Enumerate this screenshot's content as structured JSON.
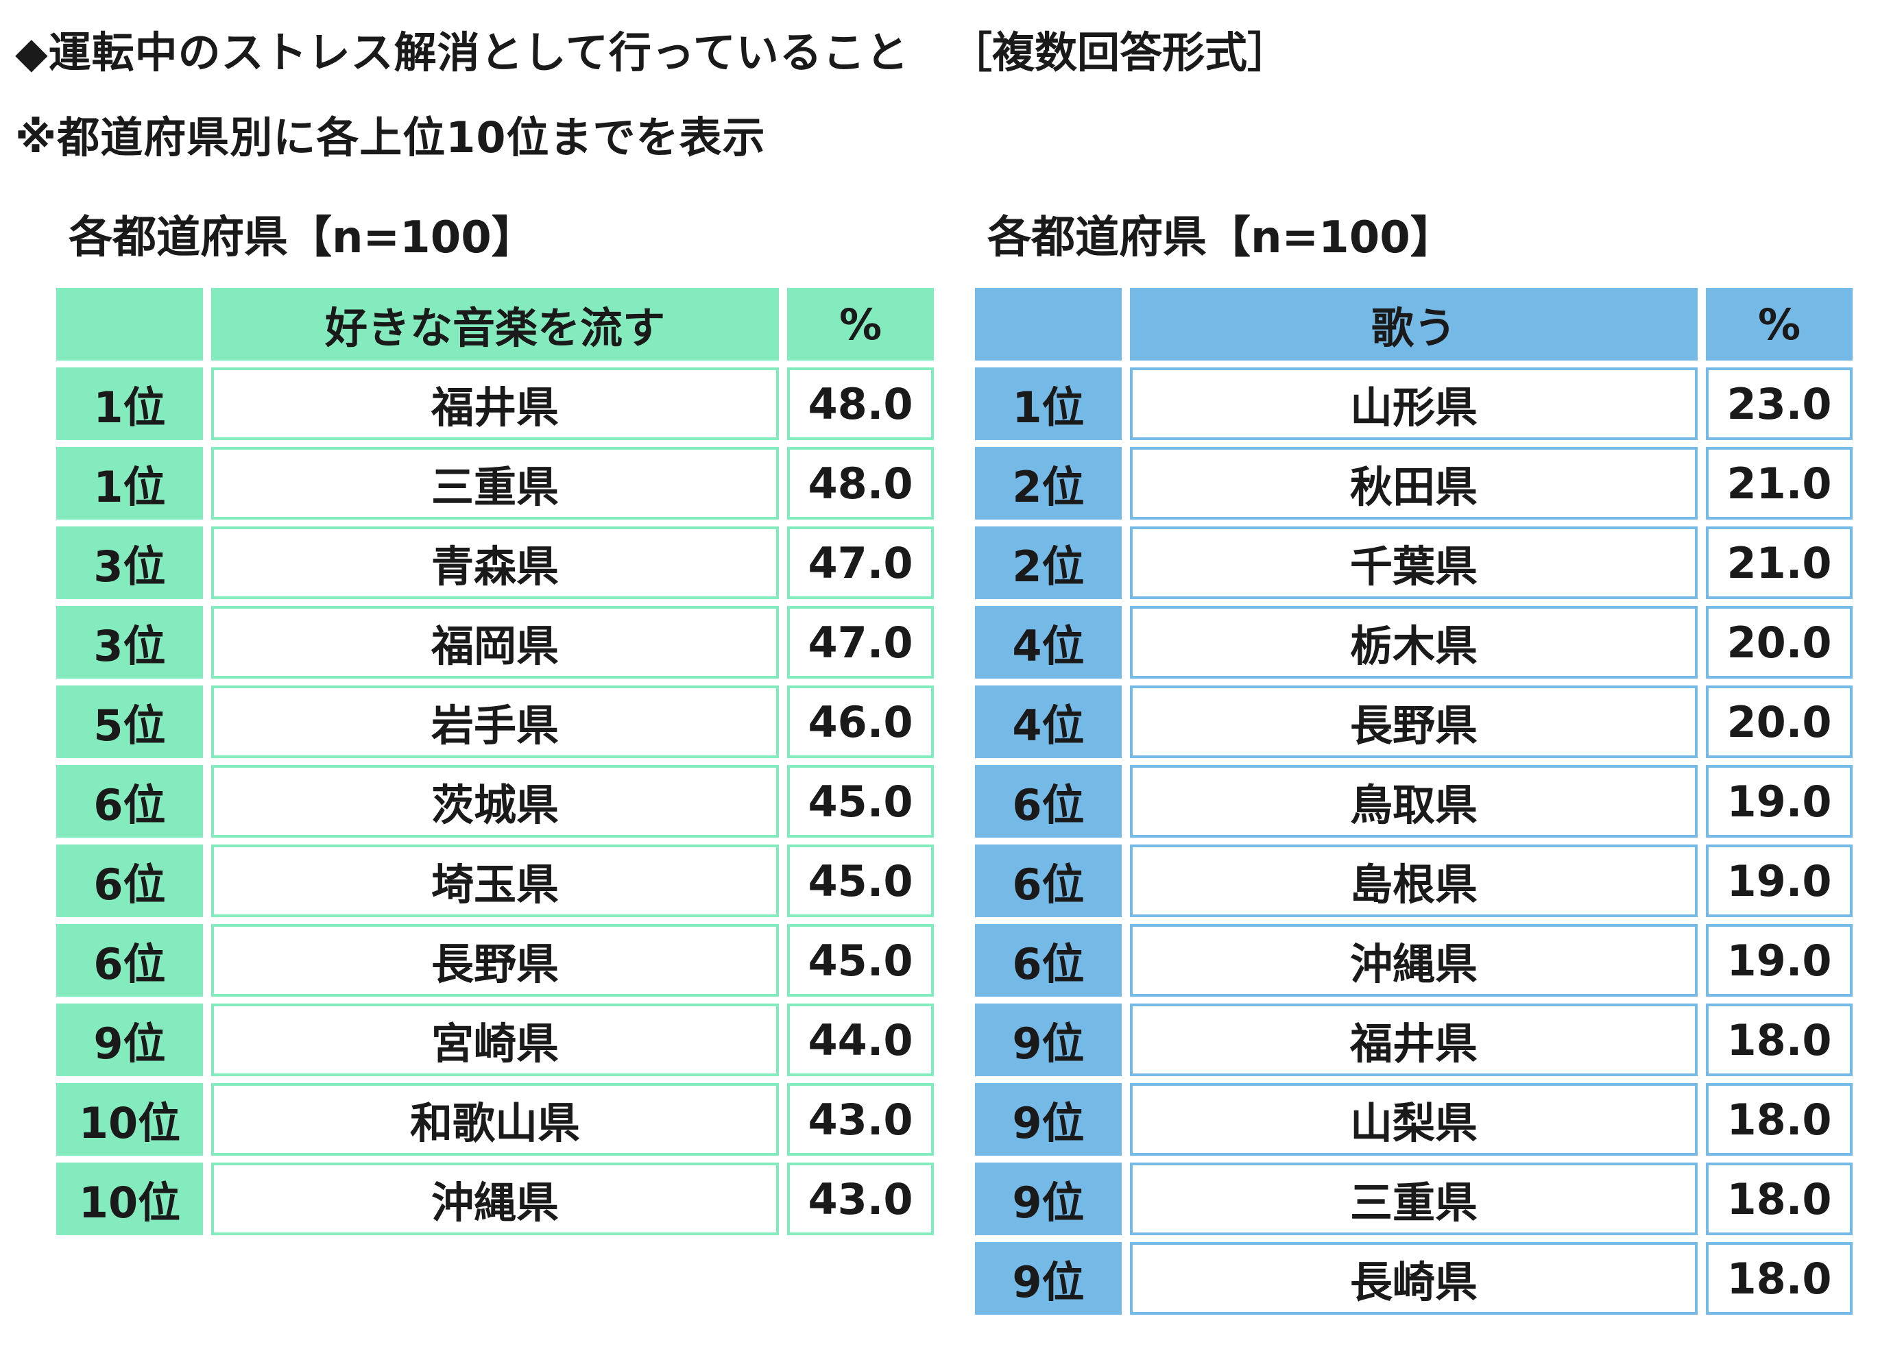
{
  "title": "◆運転中のストレス解消として行っていること",
  "answer_type": "［複数回答形式］",
  "note": "※都道府県別に各上位10位までを表示",
  "chart_data": [
    {
      "type": "table",
      "heading": "各都道府県【n=100】",
      "column_header": "好きな音楽を流す",
      "unit_header": "%",
      "accent_color": "#84ebbf",
      "rows": [
        {
          "rank": "1位",
          "prefecture": "福井県",
          "value": "48.0"
        },
        {
          "rank": "1位",
          "prefecture": "三重県",
          "value": "48.0"
        },
        {
          "rank": "3位",
          "prefecture": "青森県",
          "value": "47.0"
        },
        {
          "rank": "3位",
          "prefecture": "福岡県",
          "value": "47.0"
        },
        {
          "rank": "5位",
          "prefecture": "岩手県",
          "value": "46.0"
        },
        {
          "rank": "6位",
          "prefecture": "茨城県",
          "value": "45.0"
        },
        {
          "rank": "6位",
          "prefecture": "埼玉県",
          "value": "45.0"
        },
        {
          "rank": "6位",
          "prefecture": "長野県",
          "value": "45.0"
        },
        {
          "rank": "9位",
          "prefecture": "宮崎県",
          "value": "44.0"
        },
        {
          "rank": "10位",
          "prefecture": "和歌山県",
          "value": "43.0"
        },
        {
          "rank": "10位",
          "prefecture": "沖縄県",
          "value": "43.0"
        }
      ]
    },
    {
      "type": "table",
      "heading": "各都道府県【n=100】",
      "column_header": "歌う",
      "unit_header": "%",
      "accent_color": "#75b9e6",
      "rows": [
        {
          "rank": "1位",
          "prefecture": "山形県",
          "value": "23.0"
        },
        {
          "rank": "2位",
          "prefecture": "秋田県",
          "value": "21.0"
        },
        {
          "rank": "2位",
          "prefecture": "千葉県",
          "value": "21.0"
        },
        {
          "rank": "4位",
          "prefecture": "栃木県",
          "value": "20.0"
        },
        {
          "rank": "4位",
          "prefecture": "長野県",
          "value": "20.0"
        },
        {
          "rank": "6位",
          "prefecture": "鳥取県",
          "value": "19.0"
        },
        {
          "rank": "6位",
          "prefecture": "島根県",
          "value": "19.0"
        },
        {
          "rank": "6位",
          "prefecture": "沖縄県",
          "value": "19.0"
        },
        {
          "rank": "9位",
          "prefecture": "福井県",
          "value": "18.0"
        },
        {
          "rank": "9位",
          "prefecture": "山梨県",
          "value": "18.0"
        },
        {
          "rank": "9位",
          "prefecture": "三重県",
          "value": "18.0"
        },
        {
          "rank": "9位",
          "prefecture": "長崎県",
          "value": "18.0"
        }
      ]
    }
  ]
}
